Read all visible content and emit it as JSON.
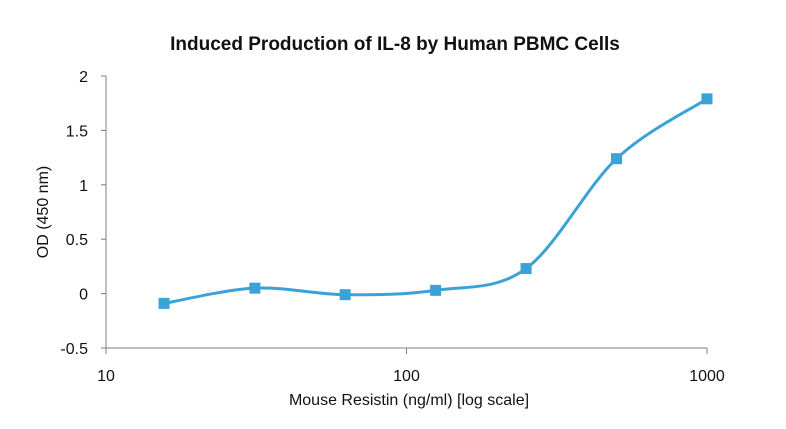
{
  "chart_data": {
    "type": "line",
    "title": "Induced Production of IL-8 by Human PBMC Cells",
    "xlabel": "Mouse Resistin (ng/ml) [log scale]",
    "ylabel": "OD (450 nm)",
    "x_scale": "log",
    "xlim": [
      10,
      1000
    ],
    "ylim": [
      -0.5,
      2
    ],
    "x_ticks": [
      10,
      100,
      1000
    ],
    "x_tick_labels": [
      "10",
      "100",
      "1000"
    ],
    "y_ticks": [
      -0.5,
      0,
      0.5,
      1,
      1.5,
      2
    ],
    "y_tick_labels": [
      "-0.5",
      "0",
      "0.5",
      "1",
      "1.5",
      "2"
    ],
    "grid": false,
    "legend": "none",
    "series": [
      {
        "color": "#3ba2d8",
        "marker": "square",
        "smooth": true,
        "x": [
          15.6,
          31.3,
          62.5,
          125,
          250,
          500,
          1000
        ],
        "y": [
          -0.09,
          0.05,
          -0.01,
          0.03,
          0.23,
          1.24,
          1.79
        ]
      }
    ]
  }
}
